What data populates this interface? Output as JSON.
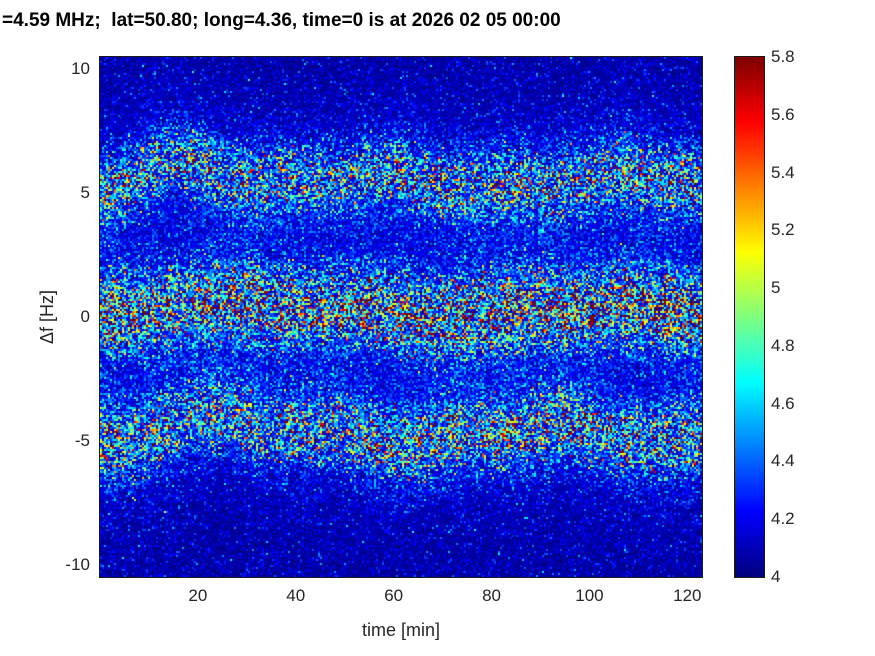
{
  "chart_data": {
    "type": "heatmap",
    "title": "=4.59 MHz;  lat=50.80; long=4.36, time=0 is at 2026 02 05 00:00",
    "xlabel": "time [min]",
    "ylabel": "Δf [Hz]",
    "xlim": [
      0,
      123
    ],
    "ylim": [
      -10.5,
      10.5
    ],
    "xticks": [
      20,
      40,
      60,
      80,
      100,
      120
    ],
    "yticks": [
      10,
      5,
      0,
      -5,
      -10
    ],
    "colormap": "jet",
    "grid": false,
    "legend": "none",
    "colorbar": {
      "min": 4,
      "max": 5.8,
      "ticks": [
        5.8,
        5.6,
        5.4,
        5.2,
        5,
        4.8,
        4.6,
        4.4,
        4.2,
        4
      ],
      "position": "right"
    },
    "background_level": 4,
    "noise": {
      "background_amp": 0.09,
      "speckle_scale": 0.6,
      "seed": 987654321
    },
    "bands": [
      {
        "name": "upper-doppler-band",
        "description": "Noisy spectral trace near +5.5 Hz, rising to ~+6.2 Hz around t=20 min",
        "center": 5.45,
        "sigma": 0.85,
        "amp": 0.72,
        "halo_sigma": 1.9,
        "halo_amp": 0.2,
        "bump20": 0.85,
        "start_offset": -0.6,
        "amp_ramp": 0.15,
        "wobbles": [
          [
            0.25,
            52,
            1.2
          ],
          [
            0.15,
            23,
            4.0
          ]
        ]
      },
      {
        "name": "carrier-band",
        "description": "Strongest trace near 0 to +0.5 Hz, intense (red) across full record",
        "center": 0.25,
        "sigma": 0.95,
        "amp": 1.0,
        "halo_sigma": 2.2,
        "halo_amp": 0.25,
        "bump20": 0.55,
        "start_offset": -0.2,
        "amp_ramp": 0.3,
        "wobbles": [
          [
            0.2,
            60,
            3.5
          ],
          [
            0.12,
            27,
            1.0
          ]
        ]
      },
      {
        "name": "lower-doppler-band",
        "description": "Noisy spectral trace near -4.8 Hz, rising to ~-4.0 Hz around t=20 min",
        "center": -4.75,
        "sigma": 0.9,
        "amp": 0.78,
        "halo_sigma": 2.0,
        "halo_amp": 0.2,
        "bump20": 0.8,
        "start_offset": -0.4,
        "amp_ramp": 0.1,
        "wobbles": [
          [
            0.3,
            55,
            3.8
          ],
          [
            0.18,
            24,
            1.5
          ]
        ]
      }
    ]
  }
}
